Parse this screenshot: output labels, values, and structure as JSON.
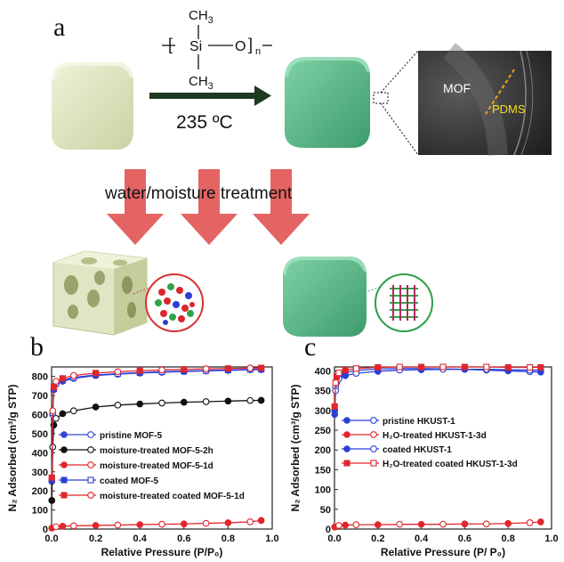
{
  "panel_labels": {
    "a": "a",
    "b": "b",
    "c": "c"
  },
  "scheme": {
    "polymer_ch3_top": "CH",
    "polymer_ch3_top_sub": "3",
    "polymer_si": "Si",
    "polymer_o": "O",
    "polymer_n": "n",
    "polymer_ch3_bottom": "CH",
    "polymer_ch3_bottom_sub": "3",
    "temperature": "235 ºC",
    "treatment": "water/moisture treatment",
    "tem_label_mof": "MOF",
    "tem_label_pdms": "PDMS",
    "colors": {
      "pristine_cube": "#dfe6c4",
      "coated_cube": "#5fb98a",
      "arrow_dark": "#1e3a22",
      "arrow_red": "#e46363",
      "pdms_label": "#f2e21a"
    }
  },
  "chart_data": [
    {
      "panel": "b",
      "type": "line",
      "xlabel": "Relative Pressure (P/P₀)",
      "ylabel": "N₂ Adsorbed (cm³/g STP)",
      "xlim": [
        0.0,
        1.0
      ],
      "ylim": [
        0,
        850
      ],
      "xticks": [
        "0.0",
        "0.2",
        "0.4",
        "0.6",
        "0.8",
        "1.0"
      ],
      "yticks": [
        "0",
        "100",
        "200",
        "300",
        "400",
        "500",
        "600",
        "700",
        "800"
      ],
      "series": [
        {
          "name": "pristine MOF-5",
          "color": "#3446d1",
          "x": [
            0.001,
            0.005,
            0.01,
            0.02,
            0.05,
            0.1,
            0.2,
            0.3,
            0.4,
            0.5,
            0.6,
            0.7,
            0.8,
            0.9,
            0.95
          ],
          "y": [
            250,
            600,
            730,
            760,
            775,
            790,
            805,
            812,
            818,
            822,
            826,
            829,
            832,
            835,
            836
          ]
        },
        {
          "name": "moisture-treated MOF-5-2h",
          "color": "#111111",
          "x": [
            0.001,
            0.005,
            0.01,
            0.02,
            0.05,
            0.1,
            0.2,
            0.3,
            0.4,
            0.5,
            0.6,
            0.7,
            0.8,
            0.9,
            0.95
          ],
          "y": [
            150,
            430,
            545,
            580,
            605,
            620,
            640,
            650,
            656,
            661,
            665,
            668,
            671,
            674,
            675
          ]
        },
        {
          "name": "moisture-treated MOF-5-1d",
          "color": "#e0262c",
          "x": [
            0.001,
            0.02,
            0.05,
            0.1,
            0.2,
            0.3,
            0.4,
            0.5,
            0.6,
            0.7,
            0.8,
            0.9,
            0.95
          ],
          "y": [
            5,
            12,
            15,
            17,
            19,
            21,
            23,
            25,
            27,
            30,
            33,
            38,
            45
          ]
        },
        {
          "name": "coated MOF-5",
          "color": "#2b3fd6",
          "x": [
            0.001,
            0.005,
            0.01,
            0.02,
            0.05,
            0.1,
            0.2,
            0.3,
            0.4,
            0.5,
            0.6,
            0.7,
            0.8,
            0.9,
            0.95
          ],
          "y": [
            260,
            610,
            735,
            765,
            780,
            795,
            808,
            815,
            820,
            825,
            828,
            831,
            834,
            837,
            838
          ]
        },
        {
          "name": "moisture-treated coated MOF-5-1d",
          "color": "#e0262c",
          "x": [
            0.001,
            0.005,
            0.01,
            0.02,
            0.05,
            0.1,
            0.2,
            0.3,
            0.4,
            0.5,
            0.6,
            0.7,
            0.8,
            0.9,
            0.95
          ],
          "y": [
            270,
            620,
            745,
            775,
            790,
            805,
            818,
            825,
            830,
            834,
            837,
            840,
            842,
            844,
            845
          ]
        }
      ]
    },
    {
      "panel": "c",
      "type": "line",
      "xlabel": "Relative Pressure (P/ P₀)",
      "ylabel": "N₂ Adsorbed (cm³/g STP)",
      "xlim": [
        0.0,
        1.0
      ],
      "ylim": [
        0,
        410
      ],
      "xticks": [
        "0.0",
        "0.2",
        "0.4",
        "0.6",
        "0.8",
        "1.0"
      ],
      "yticks": [
        "0",
        "50",
        "100",
        "150",
        "200",
        "250",
        "300",
        "350",
        "400"
      ],
      "series": [
        {
          "name": "pristine HKUST-1",
          "color": "#2b3fd6",
          "x": [
            0.001,
            0.005,
            0.01,
            0.02,
            0.05,
            0.1,
            0.2,
            0.3,
            0.4,
            0.5,
            0.6,
            0.7,
            0.8,
            0.9,
            0.95
          ],
          "y": [
            300,
            360,
            378,
            388,
            396,
            401,
            405,
            406,
            406,
            405,
            404,
            402,
            400,
            398,
            397
          ]
        },
        {
          "name": "H₂O-treated HKUST-1-3d",
          "color": "#e0262c",
          "x": [
            0.001,
            0.02,
            0.05,
            0.1,
            0.2,
            0.3,
            0.4,
            0.5,
            0.6,
            0.7,
            0.8,
            0.9,
            0.95
          ],
          "y": [
            5,
            9,
            10,
            11,
            11,
            12,
            12,
            12,
            13,
            13,
            14,
            16,
            18
          ]
        },
        {
          "name": "coated HKUST-1",
          "color": "#2b3fd6",
          "x": [
            0.001,
            0.005,
            0.01,
            0.02,
            0.05,
            0.1,
            0.2,
            0.3,
            0.4,
            0.5,
            0.6,
            0.7,
            0.8,
            0.9,
            0.95
          ],
          "y": [
            290,
            350,
            370,
            380,
            388,
            394,
            399,
            402,
            403,
            404,
            404,
            404,
            403,
            402,
            402
          ]
        },
        {
          "name": "H₂O-treated coated HKUST-1-3d",
          "color": "#e0262c",
          "x": [
            0.001,
            0.005,
            0.01,
            0.02,
            0.05,
            0.1,
            0.2,
            0.3,
            0.4,
            0.5,
            0.6,
            0.7,
            0.8,
            0.9,
            0.95
          ],
          "y": [
            310,
            370,
            385,
            395,
            402,
            406,
            409,
            410,
            410,
            410,
            410,
            410,
            409,
            409,
            409
          ]
        }
      ]
    }
  ]
}
